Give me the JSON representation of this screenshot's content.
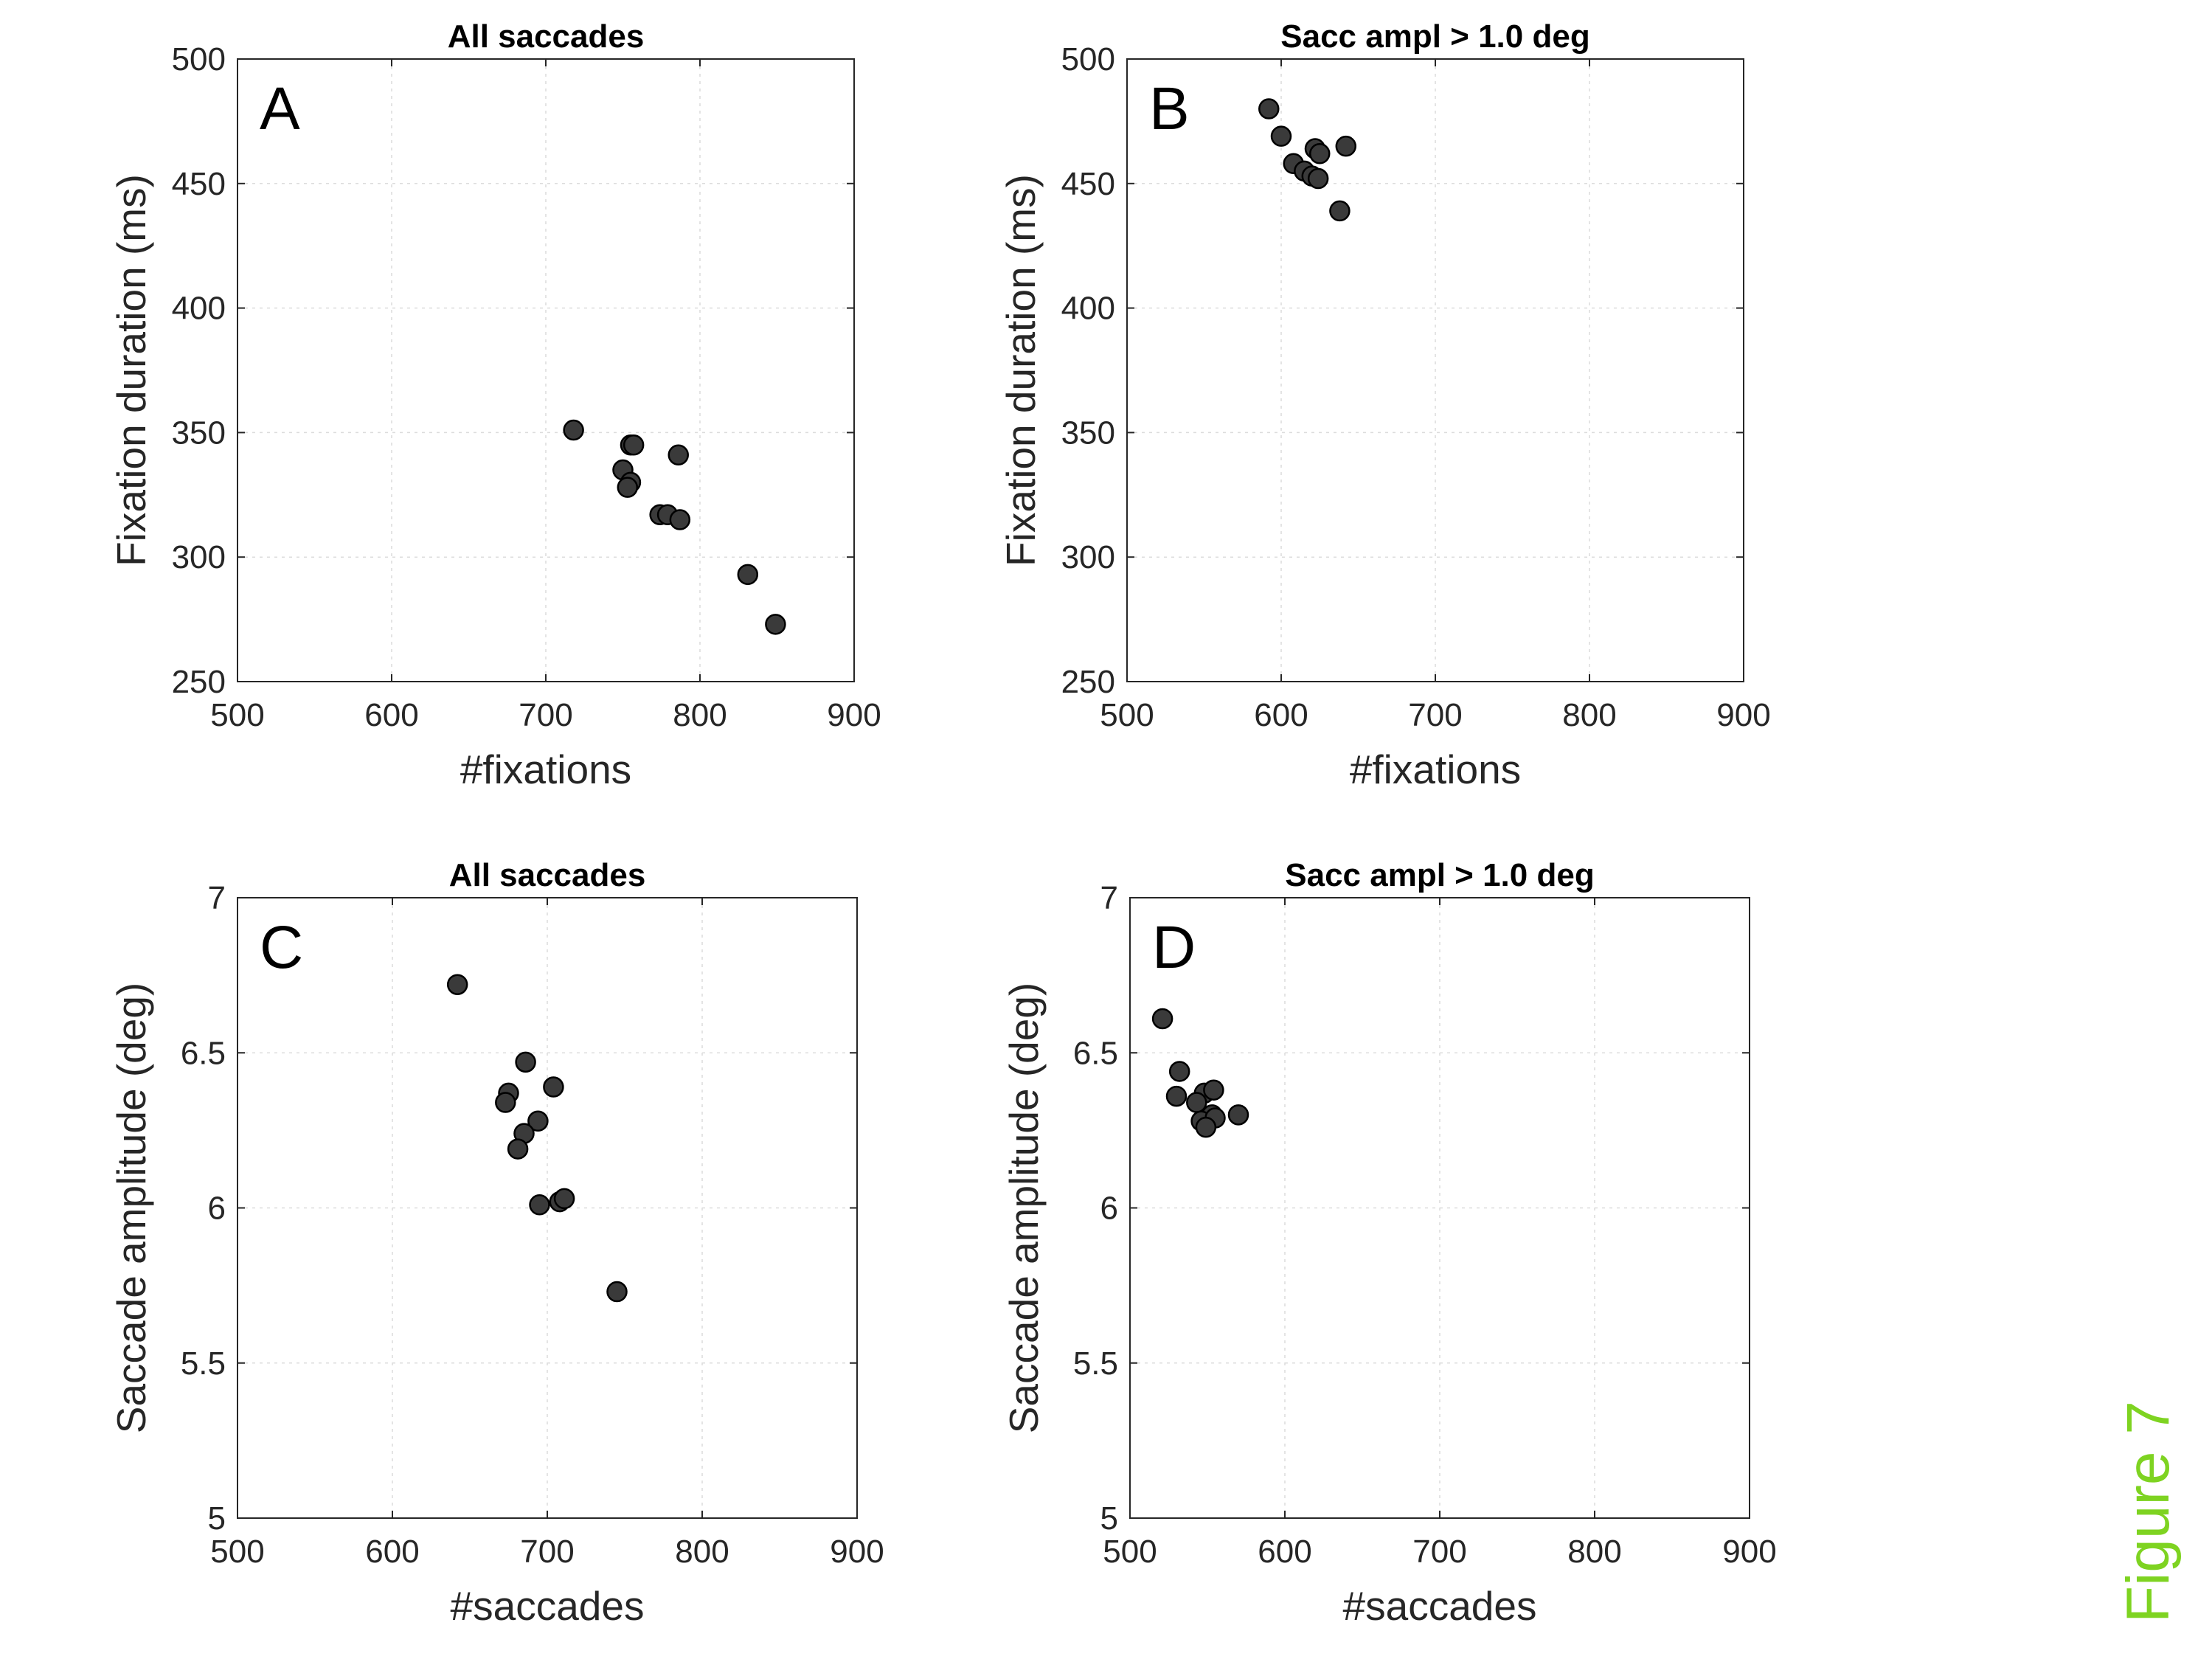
{
  "figure_label": "Figure 7",
  "colors": {
    "marker_fill": "#3a3a3a",
    "marker_edge": "#000000",
    "axis": "#262626",
    "grid": "#dcdcdc",
    "figure_label": "#7ed321"
  },
  "chart_data": [
    {
      "panel": "A",
      "type": "scatter",
      "title": "All saccades",
      "xlabel": "#fixations",
      "ylabel": "Fixation duration (ms)",
      "xlim": [
        500,
        900
      ],
      "ylim": [
        250,
        500
      ],
      "xticks": [
        500,
        600,
        700,
        800,
        900
      ],
      "yticks": [
        250,
        300,
        350,
        400,
        450,
        500
      ],
      "grid": true,
      "points": [
        {
          "x": 718,
          "y": 351
        },
        {
          "x": 755,
          "y": 345
        },
        {
          "x": 757,
          "y": 345
        },
        {
          "x": 786,
          "y": 341
        },
        {
          "x": 750,
          "y": 335
        },
        {
          "x": 755,
          "y": 330
        },
        {
          "x": 753,
          "y": 328
        },
        {
          "x": 774,
          "y": 317
        },
        {
          "x": 779,
          "y": 317
        },
        {
          "x": 787,
          "y": 315
        },
        {
          "x": 831,
          "y": 293
        },
        {
          "x": 849,
          "y": 273
        }
      ]
    },
    {
      "panel": "B",
      "type": "scatter",
      "title": "Sacc ampl > 1.0 deg",
      "xlabel": "#fixations",
      "ylabel": "Fixation duration (ms)",
      "xlim": [
        500,
        900
      ],
      "ylim": [
        250,
        500
      ],
      "xticks": [
        500,
        600,
        700,
        800,
        900
      ],
      "yticks": [
        250,
        300,
        350,
        400,
        450,
        500
      ],
      "grid": true,
      "points": [
        {
          "x": 592,
          "y": 480
        },
        {
          "x": 600,
          "y": 469
        },
        {
          "x": 642,
          "y": 465
        },
        {
          "x": 622,
          "y": 464
        },
        {
          "x": 625,
          "y": 462
        },
        {
          "x": 608,
          "y": 458
        },
        {
          "x": 615,
          "y": 455
        },
        {
          "x": 620,
          "y": 453
        },
        {
          "x": 624,
          "y": 452
        },
        {
          "x": 638,
          "y": 439
        }
      ]
    },
    {
      "panel": "C",
      "type": "scatter",
      "title": "All saccades",
      "xlabel": "#saccades",
      "ylabel": "Saccade amplitude (deg)",
      "xlim": [
        500,
        900
      ],
      "ylim": [
        5,
        7
      ],
      "xticks": [
        500,
        600,
        700,
        800,
        900
      ],
      "yticks": [
        5,
        5.5,
        6,
        6.5,
        7
      ],
      "grid": true,
      "points": [
        {
          "x": 642,
          "y": 6.72
        },
        {
          "x": 686,
          "y": 6.47
        },
        {
          "x": 704,
          "y": 6.39
        },
        {
          "x": 675,
          "y": 6.37
        },
        {
          "x": 673,
          "y": 6.34
        },
        {
          "x": 694,
          "y": 6.28
        },
        {
          "x": 685,
          "y": 6.24
        },
        {
          "x": 681,
          "y": 6.19
        },
        {
          "x": 708,
          "y": 6.02
        },
        {
          "x": 711,
          "y": 6.03
        },
        {
          "x": 695,
          "y": 6.01
        },
        {
          "x": 745,
          "y": 5.73
        }
      ]
    },
    {
      "panel": "D",
      "type": "scatter",
      "title": "Sacc ampl > 1.0 deg",
      "xlabel": "#saccades",
      "ylabel": "Saccade amplitude (deg)",
      "xlim": [
        500,
        900
      ],
      "ylim": [
        5,
        7
      ],
      "xticks": [
        500,
        600,
        700,
        800,
        900
      ],
      "yticks": [
        5,
        5.5,
        6,
        6.5,
        7
      ],
      "grid": true,
      "points": [
        {
          "x": 521,
          "y": 6.61
        },
        {
          "x": 532,
          "y": 6.44
        },
        {
          "x": 530,
          "y": 6.36
        },
        {
          "x": 548,
          "y": 6.37
        },
        {
          "x": 554,
          "y": 6.38
        },
        {
          "x": 543,
          "y": 6.34
        },
        {
          "x": 570,
          "y": 6.3
        },
        {
          "x": 553,
          "y": 6.3
        },
        {
          "x": 546,
          "y": 6.28
        },
        {
          "x": 555,
          "y": 6.29
        },
        {
          "x": 549,
          "y": 6.26
        }
      ]
    }
  ]
}
